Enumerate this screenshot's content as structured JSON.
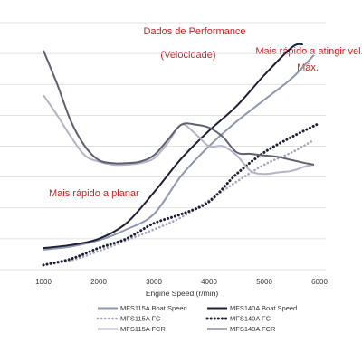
{
  "chart_data": {
    "type": "line",
    "title": "Dados de Performance",
    "subtitle": "(Velocidade)",
    "xlabel": "Engine Speed (r/min)",
    "ylabel": "",
    "xlim": [
      1000,
      6000
    ],
    "xticks": [
      "1000",
      "2000",
      "3000",
      "4000",
      "5000",
      "6000"
    ],
    "grid": "horizontal",
    "legend_position": "bottom",
    "annotations": [
      {
        "text": "Mais rápido a atingir vel."
      },
      {
        "text": "Máx."
      },
      {
        "text": "Mais rápido a planar"
      }
    ],
    "series": [
      {
        "name": "MFS115A Boat Speed",
        "color": "#8e97b0",
        "style": "solid",
        "width": 2,
        "x": [
          1000,
          1500,
          2000,
          2500,
          3000,
          3500,
          4000,
          4500,
          5000,
          5500,
          5900
        ],
        "y": [
          6.5,
          7.5,
          9.5,
          13,
          18,
          30.5,
          40,
          48,
          55,
          62,
          69.5
        ]
      },
      {
        "name": "MFS140A Boat Speed",
        "color": "#1f2036",
        "style": "solid",
        "width": 2,
        "x": [
          1000,
          1500,
          2000,
          2500,
          3000,
          3500,
          4000,
          4500,
          5000,
          5500,
          5700
        ],
        "y": [
          7,
          8,
          10,
          15,
          25,
          36,
          45,
          53,
          63,
          72,
          73
        ]
      },
      {
        "name": "MFS115A FC",
        "color": "#a6a6bf",
        "style": "dotted",
        "width": 2,
        "x": [
          1000,
          1500,
          2000,
          2500,
          3000,
          3500,
          4000,
          4500,
          5000,
          5500,
          5900
        ],
        "y": [
          1.5,
          3,
          6,
          9.5,
          13,
          17,
          22.5,
          28.5,
          34,
          38,
          42
        ]
      },
      {
        "name": "MFS140A FC",
        "color": "#1f2036",
        "style": "dotted",
        "width": 2.4,
        "x": [
          1000,
          1500,
          2000,
          2500,
          3000,
          3500,
          4000,
          4500,
          5000,
          5500,
          5950
        ],
        "y": [
          1.5,
          3.5,
          7,
          10,
          15,
          18,
          22,
          31,
          38,
          43,
          47
        ]
      },
      {
        "name": "MFS115A FCR",
        "color": "#b4b4c6",
        "style": "solid",
        "width": 2,
        "x": [
          1000,
          1250,
          1500,
          1750,
          2000,
          2250,
          2500,
          2750,
          3000,
          3250,
          3500,
          3750,
          4000,
          4250,
          4500,
          4750,
          5000,
          5250,
          5500,
          5750,
          5900
        ],
        "y": [
          56.5,
          50,
          43,
          37,
          35,
          34,
          34,
          34.5,
          36,
          41,
          47,
          44,
          40,
          40,
          37,
          32,
          31,
          31.5,
          32,
          33.5,
          34
        ]
      },
      {
        "name": "MFS140A FCR",
        "color": "#5f6070",
        "style": "solid",
        "width": 2,
        "x": [
          1000,
          1250,
          1500,
          1750,
          2000,
          2250,
          2500,
          2750,
          3000,
          3250,
          3500,
          3750,
          4000,
          4250,
          4500,
          4750,
          5000,
          5250,
          5500,
          5750,
          5900
        ],
        "y": [
          71,
          60,
          48,
          40,
          35.5,
          34.5,
          34.5,
          35,
          37,
          42,
          47,
          47,
          46,
          43,
          38,
          37.5,
          37,
          36.5,
          35.5,
          34.5,
          34
        ]
      }
    ]
  }
}
